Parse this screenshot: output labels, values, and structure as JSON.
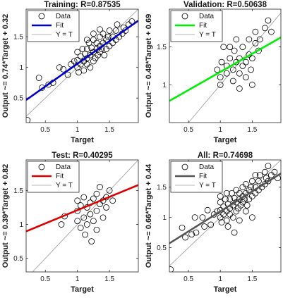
{
  "figure": {
    "background": "#ffffff",
    "colors": {
      "axis": "#262626",
      "identity_line": "#9a9a9a",
      "marker": "#000000"
    }
  },
  "chart_data": [
    {
      "type": "scatter",
      "title": "Training: R=0.87535",
      "xlabel": "Target",
      "ylabel": "Output ~= 0.74*Target + 0.32",
      "xlim": [
        0.2,
        1.95
      ],
      "ylim": [
        0.1,
        1.95
      ],
      "xticks": [
        0.5,
        1,
        1.5
      ],
      "xtick_labels": [
        "0.5",
        "1",
        "1.5"
      ],
      "yticks": [
        0.5,
        1,
        1.5
      ],
      "ytick_labels": [
        "0.5",
        "1",
        "1.5"
      ],
      "grid": false,
      "legend": {
        "placement": "top-left",
        "entries": [
          "Data",
          "Fit",
          "Y = T"
        ]
      },
      "fit": {
        "slope": 0.74,
        "intercept": 0.32,
        "color": "#0000cc"
      },
      "identity_line": true,
      "points": [
        [
          0.22,
          0.14
        ],
        [
          0.4,
          0.83
        ],
        [
          0.45,
          0.67
        ],
        [
          0.55,
          0.72
        ],
        [
          0.62,
          0.75
        ],
        [
          0.72,
          1.0
        ],
        [
          0.78,
          0.97
        ],
        [
          0.85,
          0.88
        ],
        [
          0.9,
          1.05
        ],
        [
          0.95,
          1.1
        ],
        [
          1.0,
          1.0
        ],
        [
          1.0,
          1.12
        ],
        [
          1.0,
          1.25
        ],
        [
          1.02,
          0.92
        ],
        [
          1.05,
          1.05
        ],
        [
          1.05,
          1.18
        ],
        [
          1.08,
          1.3
        ],
        [
          1.1,
          0.95
        ],
        [
          1.1,
          1.1
        ],
        [
          1.12,
          1.22
        ],
        [
          1.15,
          1.05
        ],
        [
          1.15,
          1.15
        ],
        [
          1.15,
          1.3
        ],
        [
          1.18,
          1.4
        ],
        [
          1.2,
          1.0
        ],
        [
          1.2,
          1.2
        ],
        [
          1.22,
          1.32
        ],
        [
          1.25,
          1.1
        ],
        [
          1.25,
          1.25
        ],
        [
          1.25,
          1.45
        ],
        [
          1.28,
          1.15
        ],
        [
          1.3,
          1.3
        ],
        [
          1.3,
          1.4
        ],
        [
          1.32,
          1.2
        ],
        [
          1.35,
          1.25
        ],
        [
          1.35,
          1.35
        ],
        [
          1.35,
          1.5
        ],
        [
          1.38,
          1.3
        ],
        [
          1.4,
          1.4
        ],
        [
          1.4,
          1.55
        ],
        [
          1.42,
          1.2
        ],
        [
          1.45,
          1.3
        ],
        [
          1.45,
          1.45
        ],
        [
          1.48,
          1.5
        ],
        [
          1.5,
          1.35
        ],
        [
          1.5,
          1.6
        ],
        [
          1.55,
          1.4
        ],
        [
          1.55,
          1.5
        ],
        [
          1.6,
          1.45
        ],
        [
          1.6,
          1.6
        ],
        [
          1.62,
          1.7
        ],
        [
          1.65,
          1.5
        ],
        [
          1.7,
          1.55
        ],
        [
          1.72,
          1.65
        ],
        [
          1.75,
          1.6
        ],
        [
          1.8,
          1.7
        ],
        [
          1.85,
          1.75
        ],
        [
          1.35,
          1.62
        ],
        [
          1.25,
          1.55
        ],
        [
          1.15,
          1.45
        ]
      ]
    },
    {
      "type": "scatter",
      "title": "Validation: R=0.50638",
      "xlabel": "Target",
      "ylabel": "Output ~= 0.48*Target + 0.69",
      "xlim": [
        0.2,
        1.95
      ],
      "ylim": [
        0.5,
        2.0
      ],
      "xticks": [
        0.5,
        1,
        1.5
      ],
      "xtick_labels": [
        "0.5",
        "1",
        "1.5"
      ],
      "yticks": [
        1,
        1.5
      ],
      "ytick_labels": [
        "1",
        "1.5"
      ],
      "grid": false,
      "legend": {
        "placement": "top-left",
        "entries": [
          "Data",
          "Fit",
          "Y = T"
        ]
      },
      "fit": {
        "slope": 0.48,
        "intercept": 0.69,
        "color": "#00ee00"
      },
      "identity_line": true,
      "points": [
        [
          0.95,
          1.2
        ],
        [
          1.0,
          1.0
        ],
        [
          1.0,
          1.1
        ],
        [
          1.02,
          1.3
        ],
        [
          1.05,
          1.5
        ],
        [
          1.1,
          1.15
        ],
        [
          1.1,
          1.25
        ],
        [
          1.15,
          1.35
        ],
        [
          1.2,
          1.05
        ],
        [
          1.2,
          1.2
        ],
        [
          1.22,
          1.45
        ],
        [
          1.25,
          1.3
        ],
        [
          1.3,
          0.95
        ],
        [
          1.3,
          1.15
        ],
        [
          1.3,
          1.35
        ],
        [
          1.35,
          1.25
        ],
        [
          1.35,
          1.5
        ],
        [
          1.4,
          1.1
        ],
        [
          1.4,
          1.3
        ],
        [
          1.45,
          1.4
        ],
        [
          1.48,
          1.2
        ],
        [
          1.5,
          1.0
        ],
        [
          1.5,
          1.35
        ],
        [
          1.55,
          1.55
        ],
        [
          1.55,
          1.7
        ],
        [
          1.6,
          1.45
        ],
        [
          1.62,
          1.6
        ],
        [
          1.7,
          1.75
        ],
        [
          1.75,
          1.85
        ],
        [
          1.8,
          1.7
        ],
        [
          1.45,
          1.6
        ],
        [
          1.25,
          1.6
        ],
        [
          1.15,
          1.5
        ]
      ]
    },
    {
      "type": "scatter",
      "title": "Test: R=0.40295",
      "xlabel": "Target",
      "ylabel": "Output ~= 0.39*Target + 0.82",
      "xlim": [
        0.2,
        1.95
      ],
      "ylim": [
        0.3,
        1.95
      ],
      "xticks": [
        0.5,
        1,
        1.5
      ],
      "xtick_labels": [
        "0.5",
        "1",
        "1.5"
      ],
      "yticks": [
        0.5,
        1,
        1.5
      ],
      "ytick_labels": [
        "0.5",
        "1",
        "1.5"
      ],
      "grid": false,
      "legend": {
        "placement": "top-left",
        "entries": [
          "Data",
          "Fit",
          "Y = T"
        ]
      },
      "fit": {
        "slope": 0.39,
        "intercept": 0.82,
        "color": "#dd0000"
      },
      "identity_line": true,
      "points": [
        [
          0.75,
          1.0
        ],
        [
          0.8,
          1.12
        ],
        [
          1.0,
          1.05
        ],
        [
          1.0,
          1.2
        ],
        [
          1.0,
          1.35
        ],
        [
          1.05,
          0.95
        ],
        [
          1.05,
          1.28
        ],
        [
          1.1,
          1.1
        ],
        [
          1.1,
          1.4
        ],
        [
          1.12,
          0.85
        ],
        [
          1.15,
          1.0
        ],
        [
          1.15,
          1.25
        ],
        [
          1.2,
          1.15
        ],
        [
          1.2,
          1.32
        ],
        [
          1.22,
          0.75
        ],
        [
          1.25,
          1.05
        ],
        [
          1.25,
          1.38
        ],
        [
          1.3,
          1.2
        ],
        [
          1.3,
          1.45
        ],
        [
          1.35,
          1.3
        ],
        [
          1.4,
          1.1
        ],
        [
          1.4,
          1.35
        ],
        [
          1.45,
          1.25
        ],
        [
          1.5,
          1.5
        ],
        [
          1.55,
          1.35
        ],
        [
          1.3,
          0.92
        ],
        [
          1.45,
          1.4
        ],
        [
          1.35,
          1.55
        ]
      ]
    },
    {
      "type": "scatter",
      "title": "All: R=0.74698",
      "xlabel": "Target",
      "ylabel": "Output ~= 0.66*Target + 0.44",
      "xlim": [
        0.2,
        1.95
      ],
      "ylim": [
        0.1,
        1.95
      ],
      "xticks": [
        0.5,
        1,
        1.5
      ],
      "xtick_labels": [
        "0.5",
        "1",
        "1.5"
      ],
      "yticks": [
        0.5,
        1,
        1.5
      ],
      "ytick_labels": [
        "0.5",
        "1",
        "1.5"
      ],
      "grid": false,
      "legend": {
        "placement": "top-left",
        "entries": [
          "Data",
          "Fit",
          "Y = T"
        ]
      },
      "fit": {
        "slope": 0.66,
        "intercept": 0.44,
        "color": "#555555"
      },
      "identity_line": true,
      "points": [
        [
          0.22,
          0.14
        ],
        [
          0.4,
          0.83
        ],
        [
          0.45,
          0.67
        ],
        [
          0.55,
          0.72
        ],
        [
          0.6,
          1.0
        ],
        [
          0.62,
          0.75
        ],
        [
          0.72,
          1.0
        ],
        [
          0.75,
          0.85
        ],
        [
          0.8,
          1.12
        ],
        [
          0.85,
          0.88
        ],
        [
          0.9,
          1.05
        ],
        [
          0.95,
          1.1
        ],
        [
          1.0,
          1.0
        ],
        [
          1.0,
          1.12
        ],
        [
          1.0,
          1.25
        ],
        [
          1.0,
          1.35
        ],
        [
          1.02,
          0.92
        ],
        [
          1.05,
          1.05
        ],
        [
          1.05,
          1.18
        ],
        [
          1.08,
          1.3
        ],
        [
          1.1,
          0.95
        ],
        [
          1.1,
          1.1
        ],
        [
          1.1,
          1.4
        ],
        [
          1.12,
          0.85
        ],
        [
          1.12,
          1.22
        ],
        [
          1.15,
          1.05
        ],
        [
          1.15,
          1.15
        ],
        [
          1.15,
          1.3
        ],
        [
          1.18,
          1.4
        ],
        [
          1.2,
          1.0
        ],
        [
          1.2,
          1.2
        ],
        [
          1.22,
          0.75
        ],
        [
          1.22,
          1.32
        ],
        [
          1.25,
          1.1
        ],
        [
          1.25,
          1.25
        ],
        [
          1.25,
          1.45
        ],
        [
          1.28,
          1.15
        ],
        [
          1.3,
          0.95
        ],
        [
          1.3,
          1.3
        ],
        [
          1.3,
          1.4
        ],
        [
          1.32,
          1.2
        ],
        [
          1.35,
          1.25
        ],
        [
          1.35,
          1.35
        ],
        [
          1.35,
          1.5
        ],
        [
          1.38,
          1.3
        ],
        [
          1.4,
          1.1
        ],
        [
          1.4,
          1.4
        ],
        [
          1.4,
          1.55
        ],
        [
          1.42,
          1.2
        ],
        [
          1.45,
          1.3
        ],
        [
          1.45,
          1.45
        ],
        [
          1.48,
          1.5
        ],
        [
          1.5,
          1.0
        ],
        [
          1.5,
          1.35
        ],
        [
          1.5,
          1.6
        ],
        [
          1.55,
          1.4
        ],
        [
          1.55,
          1.5
        ],
        [
          1.55,
          1.7
        ],
        [
          1.6,
          1.45
        ],
        [
          1.6,
          1.6
        ],
        [
          1.62,
          1.7
        ],
        [
          1.65,
          1.5
        ],
        [
          1.7,
          1.55
        ],
        [
          1.7,
          1.75
        ],
        [
          1.72,
          1.65
        ],
        [
          1.75,
          1.6
        ],
        [
          1.75,
          1.85
        ],
        [
          1.8,
          1.7
        ],
        [
          1.85,
          1.75
        ],
        [
          1.9,
          1.65
        ]
      ]
    }
  ]
}
